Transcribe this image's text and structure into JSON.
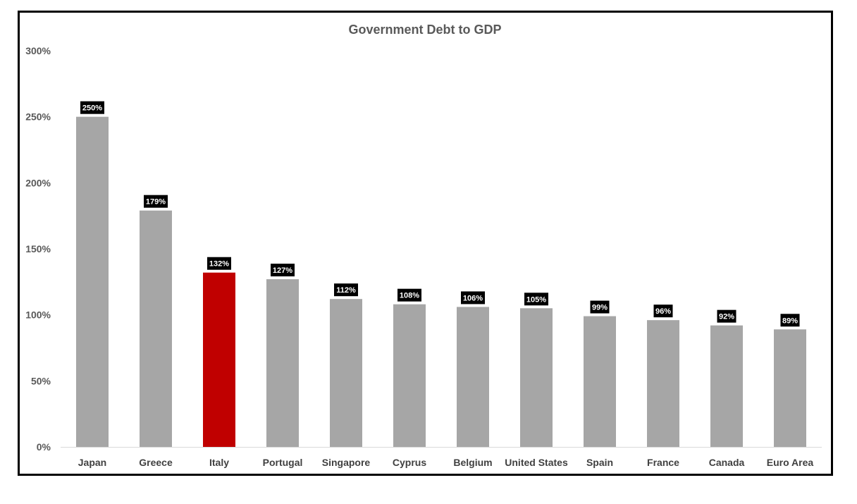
{
  "chart_data": {
    "type": "bar",
    "title": "Government Debt to GDP",
    "xlabel": "",
    "ylabel": "",
    "ylim": [
      0,
      300
    ],
    "yticks": [
      "0%",
      "50%",
      "100%",
      "150%",
      "200%",
      "250%",
      "300%"
    ],
    "categories": [
      "Japan",
      "Greece",
      "Italy",
      "Portugal",
      "Singapore",
      "Cyprus",
      "Belgium",
      "United States",
      "Spain",
      "France",
      "Canada",
      "Euro Area"
    ],
    "values": [
      250,
      179,
      132,
      127,
      112,
      108,
      106,
      105,
      99,
      96,
      92,
      89
    ],
    "data_labels": [
      "250%",
      "179%",
      "132%",
      "127%",
      "112%",
      "108%",
      "106%",
      "105%",
      "99%",
      "96%",
      "92%",
      "89%"
    ],
    "highlight_category": "Italy",
    "colors": {
      "bar": "#a6a6a6",
      "highlight": "#c00000",
      "label_bg": "#000000",
      "label_text": "#ffffff"
    },
    "grid": false,
    "legend": "none"
  }
}
